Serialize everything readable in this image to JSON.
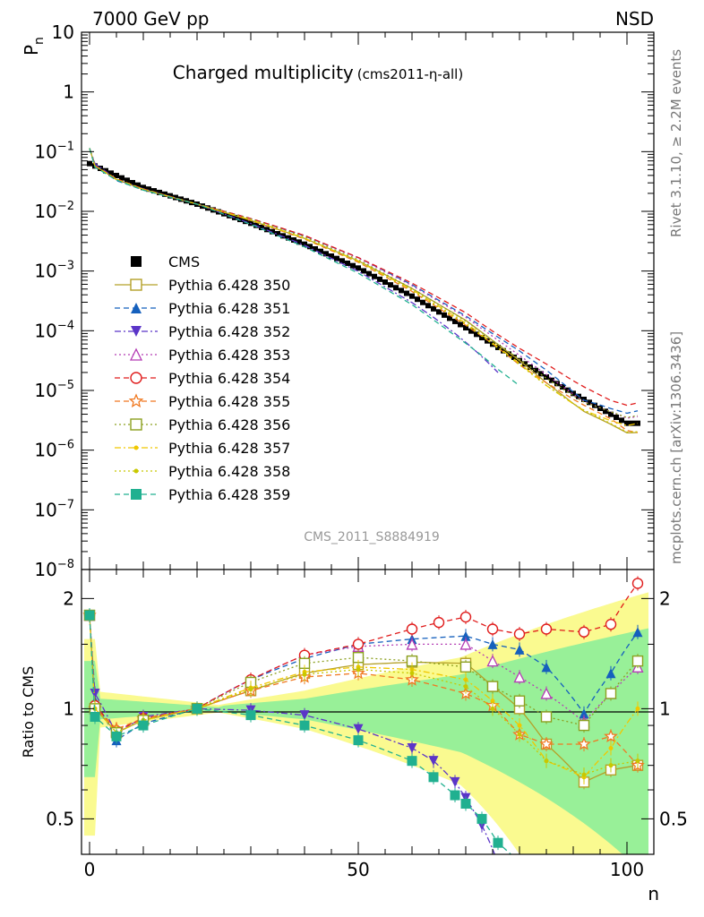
{
  "header": {
    "left": "7000 GeV pp",
    "right": "NSD"
  },
  "side_text": {
    "top": "Rivet 3.1.10, ≥ 2.2M events",
    "bottom": "mcplots.cern.ch [arXiv:1306.3436]"
  },
  "chart_data": [
    {
      "type": "line",
      "title_main": "Charged multiplicity",
      "title_sub": "(cms2011-η-all)",
      "ylabel": "P",
      "ylabel_sub": "n",
      "yscale": "log",
      "ylim": [
        1e-08,
        10
      ],
      "xlim": [
        -1.5,
        105
      ],
      "watermark": "CMS_2011_S8884919",
      "ytick_labels": [
        {
          "base": "10",
          "exp": "",
          "text": "10"
        },
        {
          "base": "1",
          "exp": "",
          "text": "1"
        },
        {
          "base": "10",
          "exp": "−1"
        },
        {
          "base": "10",
          "exp": "−2"
        },
        {
          "base": "10",
          "exp": "−3"
        },
        {
          "base": "10",
          "exp": "−4"
        },
        {
          "base": "10",
          "exp": "−5"
        },
        {
          "base": "10",
          "exp": "−6"
        },
        {
          "base": "10",
          "exp": "−7"
        },
        {
          "base": "10",
          "exp": "−8"
        }
      ],
      "legend_position": "left-middle",
      "data_points": {
        "x": [
          0,
          10,
          20,
          30,
          40,
          50,
          60,
          70,
          80,
          90,
          100
        ],
        "log10_Pn_CMS": [
          -1.2,
          -1.6,
          -1.88,
          -2.2,
          -2.55,
          -2.95,
          -3.42,
          -3.95,
          -4.5,
          -5.05,
          -5.55
        ]
      },
      "series": [
        {
          "name": "CMS",
          "color": "#000000",
          "marker": "square-filled"
        },
        {
          "name": "Pythia 6.428 350",
          "color": "#b4a028",
          "marker": "square-open",
          "dash": "solid"
        },
        {
          "name": "Pythia 6.428 351",
          "color": "#1560bd",
          "marker": "triangle-up-filled",
          "dash": "dashed"
        },
        {
          "name": "Pythia 6.428 352",
          "color": "#5b35c8",
          "marker": "triangle-down-filled",
          "dash": "dashdot"
        },
        {
          "name": "Pythia 6.428 353",
          "color": "#b43cb4",
          "marker": "triangle-up-open",
          "dash": "dotted"
        },
        {
          "name": "Pythia 6.428 354",
          "color": "#e01c1c",
          "marker": "circle-open",
          "dash": "dashed"
        },
        {
          "name": "Pythia 6.428 355",
          "color": "#f07820",
          "marker": "star-open",
          "dash": "dashed"
        },
        {
          "name": "Pythia 6.428 356",
          "color": "#8ca020",
          "marker": "square-open",
          "dash": "dotted"
        },
        {
          "name": "Pythia 6.428 357",
          "color": "#f0c800",
          "marker": "dot",
          "dash": "dashdot"
        },
        {
          "name": "Pythia 6.428 358",
          "color": "#c8c800",
          "marker": "dot",
          "dash": "dotted"
        },
        {
          "name": "Pythia 6.428 359",
          "color": "#20b090",
          "marker": "square-filled",
          "dash": "dashed"
        }
      ]
    },
    {
      "type": "line",
      "ylabel": "Ratio to CMS",
      "xlabel": "n",
      "yscale": "log",
      "ylim": [
        0.4,
        2.4
      ],
      "xlim": [
        -1.5,
        105
      ],
      "ytick_labels": [
        "2",
        "1",
        "0.5"
      ],
      "xtick_labels": [
        "0",
        "50",
        "100"
      ],
      "reference_line": 1,
      "band_colors": {
        "inner": "#98f098",
        "outer": "#fafa90"
      },
      "ratio_series": [
        {
          "name": "Pythia 6.428 350",
          "x": [
            0,
            1,
            5,
            10,
            20,
            30,
            40,
            50,
            60,
            70,
            75,
            80,
            85,
            92,
            97,
            102
          ],
          "y": [
            1.8,
            1.0,
            0.86,
            0.93,
            1.0,
            1.12,
            1.25,
            1.32,
            1.34,
            1.33,
            1.15,
            1.0,
            0.8,
            0.63,
            0.68,
            0.7
          ]
        },
        {
          "name": "Pythia 6.428 351",
          "x": [
            0,
            1,
            5,
            10,
            20,
            30,
            40,
            50,
            60,
            70,
            75,
            80,
            85,
            92,
            97,
            102
          ],
          "y": [
            1.8,
            1.05,
            0.82,
            0.91,
            1.0,
            1.2,
            1.37,
            1.5,
            1.55,
            1.58,
            1.5,
            1.45,
            1.3,
            0.97,
            1.25,
            1.62
          ]
        },
        {
          "name": "Pythia 6.428 352",
          "x": [
            0,
            1,
            5,
            10,
            20,
            30,
            40,
            50,
            60,
            64,
            68,
            70,
            73,
            76
          ],
          "y": [
            1.8,
            1.1,
            0.85,
            0.95,
            1.0,
            0.99,
            0.96,
            0.88,
            0.78,
            0.72,
            0.63,
            0.57,
            0.48,
            0.38
          ]
        },
        {
          "name": "Pythia 6.428 353",
          "x": [
            0,
            1,
            5,
            10,
            20,
            30,
            40,
            50,
            60,
            70,
            75,
            80,
            85,
            92,
            97,
            102
          ],
          "y": [
            1.8,
            1.0,
            0.87,
            0.94,
            1.0,
            1.2,
            1.4,
            1.48,
            1.5,
            1.5,
            1.35,
            1.22,
            1.1,
            0.92,
            1.1,
            1.3
          ]
        },
        {
          "name": "Pythia 6.428 354",
          "x": [
            0,
            1,
            5,
            10,
            20,
            30,
            40,
            50,
            60,
            65,
            70,
            75,
            80,
            85,
            92,
            97,
            102
          ],
          "y": [
            1.8,
            1.02,
            0.87,
            0.94,
            1.0,
            1.2,
            1.4,
            1.5,
            1.65,
            1.72,
            1.78,
            1.65,
            1.6,
            1.65,
            1.62,
            1.7,
            2.2
          ]
        },
        {
          "name": "Pythia 6.428 355",
          "x": [
            0,
            1,
            5,
            10,
            20,
            30,
            40,
            50,
            60,
            70,
            75,
            80,
            85,
            92,
            97,
            102
          ],
          "y": [
            1.8,
            1.0,
            0.88,
            0.94,
            1.0,
            1.12,
            1.22,
            1.25,
            1.2,
            1.1,
            1.02,
            0.85,
            0.8,
            0.8,
            0.84,
            0.7
          ]
        },
        {
          "name": "Pythia 6.428 356",
          "x": [
            0,
            1,
            5,
            10,
            20,
            30,
            40,
            50,
            60,
            70,
            75,
            80,
            85,
            92,
            97,
            102
          ],
          "y": [
            1.8,
            1.0,
            0.86,
            0.93,
            1.0,
            1.18,
            1.33,
            1.38,
            1.35,
            1.3,
            1.15,
            1.05,
            0.95,
            0.9,
            1.1,
            1.35
          ]
        },
        {
          "name": "Pythia 6.428 357",
          "x": [
            0,
            1,
            5,
            10,
            20,
            30,
            40,
            50,
            60,
            70,
            75,
            80,
            85,
            92,
            97,
            102
          ],
          "y": [
            1.8,
            1.0,
            0.86,
            0.93,
            1.0,
            1.14,
            1.26,
            1.3,
            1.28,
            1.2,
            1.05,
            0.9,
            0.72,
            0.65,
            0.78,
            1.0
          ]
        },
        {
          "name": "Pythia 6.428 358",
          "x": [
            0,
            1,
            5,
            10,
            20,
            30,
            40,
            50,
            60,
            70,
            75,
            80,
            85,
            92,
            97,
            102
          ],
          "y": [
            1.8,
            1.0,
            0.86,
            0.93,
            1.0,
            1.13,
            1.24,
            1.28,
            1.25,
            1.15,
            1.0,
            0.85,
            0.72,
            0.66,
            0.7,
            0.72
          ]
        },
        {
          "name": "Pythia 6.428 359",
          "x": [
            0,
            1,
            5,
            10,
            20,
            30,
            40,
            50,
            60,
            64,
            68,
            70,
            73,
            76,
            80
          ],
          "y": [
            1.8,
            0.95,
            0.84,
            0.9,
            1.0,
            0.96,
            0.9,
            0.82,
            0.72,
            0.65,
            0.58,
            0.55,
            0.5,
            0.43,
            0.38
          ]
        }
      ]
    }
  ]
}
